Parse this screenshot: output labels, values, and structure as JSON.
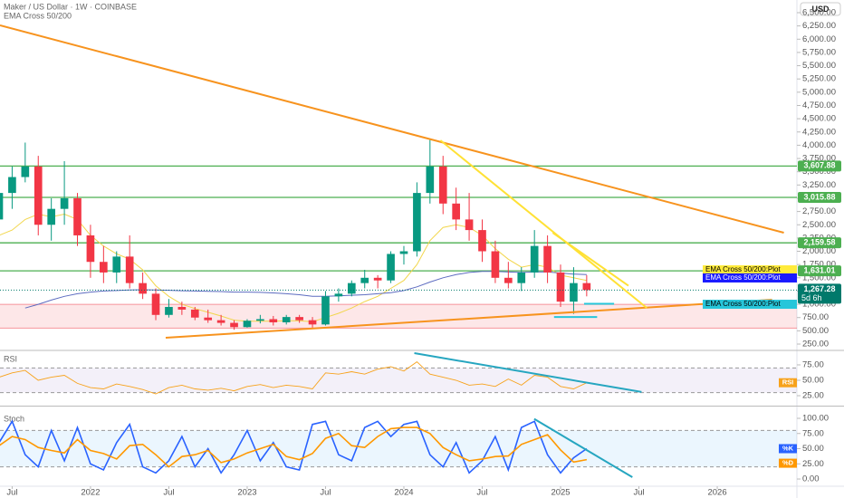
{
  "header": {
    "symbol": "Maker / US Dollar · 1W · COINBASE",
    "indicator": "EMA Cross 50/200",
    "currency": "USD"
  },
  "chart_data": [
    {
      "type": "candlestick",
      "x": [
        -7,
        -6,
        -5,
        -4,
        -3,
        -2,
        -1,
        0,
        1,
        2,
        3,
        4,
        5,
        6,
        7,
        8,
        9,
        10,
        11,
        12,
        13,
        14,
        15,
        16,
        17,
        18,
        19,
        20,
        21,
        22,
        23,
        24,
        25,
        26,
        27,
        28,
        29,
        30,
        31,
        32,
        33,
        34,
        35,
        36,
        37,
        38
      ],
      "ohlc": [
        [
          2600,
          3300,
          2300,
          3100
        ],
        [
          3100,
          3600,
          2800,
          3400
        ],
        [
          3400,
          4050,
          3300,
          3600
        ],
        [
          3600,
          3800,
          2300,
          2500
        ],
        [
          2500,
          3000,
          2200,
          2800
        ],
        [
          2800,
          3700,
          2500,
          3000
        ],
        [
          3000,
          3100,
          2100,
          2300
        ],
        [
          2300,
          2500,
          1500,
          1800
        ],
        [
          1800,
          2100,
          1400,
          1600
        ],
        [
          1600,
          2000,
          1400,
          1900
        ],
        [
          1900,
          2300,
          1300,
          1400
        ],
        [
          1400,
          1600,
          1100,
          1200
        ],
        [
          1200,
          1300,
          700,
          800
        ],
        [
          800,
          1100,
          750,
          950
        ],
        [
          950,
          1050,
          800,
          900
        ],
        [
          900,
          950,
          700,
          750
        ],
        [
          750,
          900,
          650,
          700
        ],
        [
          700,
          800,
          600,
          650
        ],
        [
          650,
          700,
          520,
          570
        ],
        [
          570,
          720,
          560,
          690
        ],
        [
          690,
          800,
          640,
          720
        ],
        [
          720,
          780,
          600,
          660
        ],
        [
          660,
          800,
          620,
          760
        ],
        [
          760,
          800,
          650,
          700
        ],
        [
          700,
          760,
          560,
          620
        ],
        [
          620,
          1250,
          600,
          1150
        ],
        [
          1150,
          1300,
          1050,
          1200
        ],
        [
          1200,
          1450,
          1150,
          1400
        ],
        [
          1400,
          1650,
          1300,
          1500
        ],
        [
          1500,
          1550,
          1300,
          1450
        ],
        [
          1450,
          2000,
          1400,
          1950
        ],
        [
          1950,
          2100,
          1750,
          2000
        ],
        [
          2000,
          3300,
          1900,
          3100
        ],
        [
          3100,
          4100,
          2900,
          3600
        ],
        [
          3600,
          3800,
          2700,
          2900
        ],
        [
          2900,
          3200,
          2400,
          2600
        ],
        [
          2600,
          3100,
          2200,
          2400
        ],
        [
          2400,
          2600,
          1800,
          2000
        ],
        [
          2000,
          2200,
          1400,
          1500
        ],
        [
          1500,
          1800,
          1300,
          1400
        ],
        [
          1400,
          1700,
          1250,
          1600
        ],
        [
          1600,
          2400,
          1500,
          2100
        ],
        [
          2100,
          2300,
          1400,
          1600
        ],
        [
          1600,
          1750,
          950,
          1050
        ],
        [
          1050,
          1700,
          820,
          1400
        ],
        [
          1400,
          1550,
          1150,
          1267.28
        ]
      ],
      "up_color": "#089981",
      "down_color": "#f23645",
      "series": [
        {
          "name": "EMA 50",
          "color": "#f2d64b",
          "values": [
            2300,
            2400,
            2600,
            2700,
            2650,
            2700,
            2600,
            2300,
            2100,
            1950,
            1850,
            1650,
            1350,
            1150,
            1000,
            920,
            850,
            780,
            700,
            680,
            680,
            680,
            690,
            690,
            670,
            750,
            830,
            930,
            1050,
            1150,
            1300,
            1450,
            1750,
            2200,
            2450,
            2500,
            2450,
            2300,
            2050,
            1850,
            1700,
            1750,
            1700,
            1550,
            1500,
            1450
          ]
        },
        {
          "name": "EMA 200",
          "color": "#5c6bc0",
          "values": [
            null,
            null,
            930,
            1000,
            1080,
            1150,
            1200,
            1230,
            1250,
            1260,
            1270,
            1275,
            1270,
            1265,
            1255,
            1250,
            1245,
            1240,
            1230,
            1230,
            1225,
            1215,
            1200,
            1180,
            1150,
            1150,
            1160,
            1170,
            1180,
            1200,
            1220,
            1260,
            1330,
            1420,
            1500,
            1560,
            1600,
            1620,
            1620,
            1610,
            1600,
            1610,
            1610,
            1590,
            1570,
            1560
          ]
        }
      ],
      "xlim": [
        -6.93,
        54.1
      ],
      "xticks": [
        {
          "value": -6,
          "label": "Jul"
        },
        {
          "value": 0,
          "label": "2022"
        },
        {
          "value": 6,
          "label": "Jul"
        },
        {
          "value": 12,
          "label": "2023"
        },
        {
          "value": 18,
          "label": "Jul"
        },
        {
          "value": 24,
          "label": "2024"
        },
        {
          "value": 30,
          "label": "Jul"
        },
        {
          "value": 36,
          "label": "2025"
        },
        {
          "value": 42,
          "label": "Jul"
        },
        {
          "value": 48,
          "label": "2026"
        }
      ],
      "ylim": [
        147.5,
        6739
      ],
      "yticks": [
        {
          "value": 250,
          "label": "250.00"
        },
        {
          "value": 500,
          "label": "500.00"
        },
        {
          "value": 750,
          "label": "750.00"
        },
        {
          "value": 1000,
          "label": "1,000.00"
        },
        {
          "value": 1250,
          "label": "1,250.00"
        },
        {
          "value": 1500,
          "label": "1,500.00"
        },
        {
          "value": 1750,
          "label": "1,750.00"
        },
        {
          "value": 2000,
          "label": "2,000.00"
        },
        {
          "value": 2250,
          "label": "2,250.00"
        },
        {
          "value": 2500,
          "label": "2,500.00"
        },
        {
          "value": 2750,
          "label": "2,750.00"
        },
        {
          "value": 3000,
          "label": "3,000.00"
        },
        {
          "value": 3250,
          "label": "3,250.00"
        },
        {
          "value": 3500,
          "label": "3,500.00"
        },
        {
          "value": 3750,
          "label": "3,750.00"
        },
        {
          "value": 4000,
          "label": "4,000.00"
        },
        {
          "value": 4250,
          "label": "4,250.00"
        },
        {
          "value": 4500,
          "label": "4,500.00"
        },
        {
          "value": 4750,
          "label": "4,750.00"
        },
        {
          "value": 5000,
          "label": "5,000.00"
        },
        {
          "value": 5250,
          "label": "5,250.00"
        },
        {
          "value": 5500,
          "label": "5,500.00"
        },
        {
          "value": 5750,
          "label": "5,750.00"
        },
        {
          "value": 6000,
          "label": "6,000.00"
        },
        {
          "value": 6250,
          "label": "6,250.00"
        },
        {
          "value": 6500,
          "label": "6,500.00"
        }
      ],
      "levels": [
        {
          "value": 3607.88,
          "label": "3,607.88",
          "color": "#4caf50"
        },
        {
          "value": 3015.88,
          "label": "3,015.88",
          "color": "#4caf50"
        },
        {
          "value": 2159.58,
          "label": "2,159.58",
          "color": "#4caf50"
        },
        {
          "value": 1631.01,
          "label": "1,631.01",
          "color": "#4caf50"
        }
      ],
      "zone": [
        550,
        1000
      ],
      "zone_color": "#f23645",
      "trendlines": [
        {
          "color": "#f7931e",
          "x": [
            -6.93,
            53.1
          ],
          "y": [
            6261,
            2350
          ]
        },
        {
          "color": "#f7931e",
          "x": [
            5.76,
            52.2
          ],
          "y": [
            370,
            1087
          ]
        },
        {
          "color": "#ffe135",
          "x": [
            26.8,
            42.6
          ],
          "y": [
            4092,
            933
          ]
        },
        {
          "color": "#ffe135",
          "x": [
            35.4,
            41.2
          ],
          "y": [
            2350,
            1350
          ]
        },
        {
          "color": "#26c6da",
          "x": [
            35.5,
            38.8
          ],
          "y": [
            760,
            760
          ]
        },
        {
          "color": "#26c6da",
          "x": [
            37.8,
            40.1
          ],
          "y": [
            1010,
            1010
          ]
        }
      ],
      "last_price": {
        "value": 1267.28,
        "label": "1,267.28",
        "countdown": "5d 6h",
        "color": "#00796b"
      },
      "plot_labels": [
        {
          "text": "EMA Cross 50/200:Plot",
          "value": 1650,
          "color": "#ffeb3b",
          "text_color": "#000000"
        },
        {
          "text": "EMA Cross 50/200:Plot",
          "value": 1497,
          "color": "#1a1aff",
          "text_color": "#ffffff"
        },
        {
          "text": "EMA Cross 50/200:Plot",
          "value": 1001,
          "color": "#26c6da",
          "text_color": "#000000"
        }
      ]
    },
    {
      "type": "line",
      "title": "RSI",
      "series": [
        {
          "name": "RSI",
          "color": "#f7a21b",
          "values": [
            55,
            62,
            66,
            50,
            55,
            58,
            45,
            38,
            36,
            44,
            40,
            35,
            28,
            38,
            42,
            36,
            34,
            37,
            33,
            40,
            43,
            38,
            42,
            40,
            36,
            62,
            60,
            64,
            60,
            68,
            72,
            65,
            80,
            60,
            55,
            50,
            42,
            44,
            40,
            52,
            42,
            58,
            55,
            40,
            36,
            46
          ]
        }
      ],
      "ylim": [
        10.3,
        97
      ],
      "yticks": [
        {
          "value": 25,
          "label": "25.00"
        },
        {
          "value": 50,
          "label": "50.00"
        },
        {
          "value": 75,
          "label": "75.00"
        }
      ],
      "band": [
        30,
        70
      ],
      "band_color": "#7e57c2",
      "trendlines": [
        {
          "color": "#26a6c0",
          "x": [
            24.8,
            42.2
          ],
          "y": [
            94,
            31
          ]
        }
      ]
    },
    {
      "type": "line",
      "title": "Stoch",
      "series": [
        {
          "name": "%K",
          "color": "#2962ff",
          "values": [
            60,
            95,
            40,
            20,
            80,
            30,
            85,
            25,
            15,
            60,
            90,
            20,
            10,
            30,
            70,
            20,
            50,
            10,
            40,
            80,
            30,
            60,
            20,
            15,
            90,
            95,
            40,
            30,
            85,
            95,
            70,
            90,
            95,
            40,
            20,
            60,
            10,
            30,
            70,
            15,
            85,
            95,
            40,
            10,
            35,
            50
          ]
        },
        {
          "name": "%D",
          "color": "#ff9800",
          "values": [
            55,
            70,
            65,
            52,
            47,
            43,
            65,
            47,
            42,
            33,
            55,
            57,
            40,
            20,
            37,
            40,
            47,
            27,
            33,
            43,
            50,
            57,
            37,
            32,
            42,
            67,
            75,
            55,
            52,
            70,
            83,
            85,
            85,
            75,
            52,
            40,
            30,
            33,
            37,
            38,
            57,
            65,
            73,
            48,
            28,
            32
          ]
        }
      ],
      "ylim": [
        -10.4,
        117.9
      ],
      "yticks": [
        {
          "value": 0,
          "label": "0.00"
        },
        {
          "value": 25,
          "label": "25.00"
        },
        {
          "value": 50,
          "label": "50.00"
        },
        {
          "value": 75,
          "label": "75.00"
        },
        {
          "value": 100,
          "label": "100.00"
        }
      ],
      "band": [
        20,
        80
      ],
      "band_color": "#2196f3",
      "trendlines": [
        {
          "color": "#26a6c0",
          "x": [
            33.98,
            41.5
          ],
          "y": [
            99,
            3
          ]
        }
      ]
    }
  ]
}
